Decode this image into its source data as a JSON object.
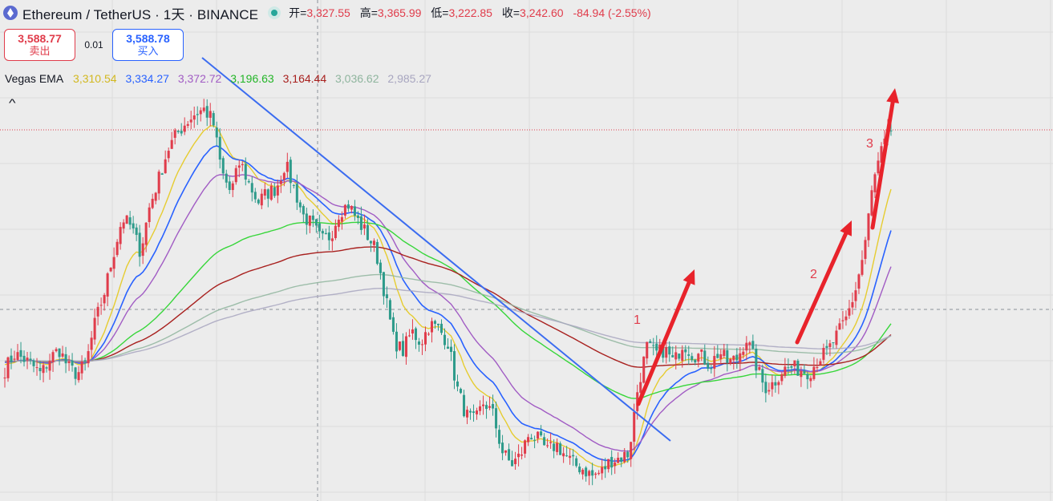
{
  "header": {
    "symbol": "Ethereum / TetherUS",
    "sep1": " · ",
    "interval": "1天",
    "sep2": " · ",
    "exchange": "BINANCE",
    "open_label": "开=",
    "open": "3,327.55",
    "high_label": "高=",
    "high": "3,365.99",
    "low_label": "低=",
    "low": "3,222.85",
    "close_label": "收=",
    "close": "3,242.60",
    "change": "-84.94 (-2.55%)"
  },
  "trade": {
    "sell_price": "3,588.77",
    "sell_label": "卖出",
    "spread": "0.01",
    "buy_price": "3,588.78",
    "buy_label": "买入"
  },
  "indicator": {
    "name": "Vegas EMA",
    "values": [
      "3,310.54",
      "3,334.27",
      "3,372.72",
      "3,196.63",
      "3,164.44",
      "3,036.62",
      "2,985.27"
    ]
  },
  "colors": {
    "up": "#e03c4b",
    "down": "#2e9b8b",
    "ema": [
      "#e6cc30",
      "#2962ff",
      "#a15cc4",
      "#37d63a",
      "#a8201e",
      "#8fb59e",
      "#a8a6c0"
    ],
    "trendline": "#3b6cf0",
    "arrow": "#e8232b"
  },
  "icons": {
    "logo": "ethereum-logo-icon",
    "status": "market-open-dot-icon",
    "collapse": "chevron-up-icon"
  },
  "annotations": [
    "1",
    "2",
    "3"
  ],
  "chart_data": {
    "type": "candlestick",
    "title": "Ethereum / TetherUS · 1天 · BINANCE",
    "ylim": [
      2200,
      4200
    ],
    "close_series": [
      2780,
      2850,
      2830,
      2800,
      2760,
      2830,
      2870,
      2790,
      2760,
      2810,
      2990,
      3120,
      3290,
      3450,
      3410,
      3300,
      3500,
      3620,
      3750,
      3820,
      3870,
      3910,
      3930,
      3880,
      3650,
      3560,
      3700,
      3600,
      3520,
      3560,
      3580,
      3690,
      3580,
      3460,
      3420,
      3350,
      3370,
      3480,
      3510,
      3440,
      3380,
      3310,
      3120,
      2910,
      2860,
      2950,
      2900,
      2980,
      2960,
      2900,
      2700,
      2580,
      2550,
      2640,
      2580,
      2420,
      2360,
      2400,
      2500,
      2470,
      2420,
      2450,
      2400,
      2360,
      2340,
      2310,
      2330,
      2380,
      2390,
      2410,
      2700,
      2880,
      2850,
      2870,
      2810,
      2900,
      2850,
      2840,
      2800,
      2860,
      2810,
      2830,
      2920,
      2810,
      2700,
      2720,
      2780,
      2790,
      2780,
      2770,
      2830,
      2860,
      2930,
      3000,
      3120,
      3300,
      3600,
      3750,
      3840
    ],
    "ema_series": [
      {
        "name": "EMA1",
        "last": "3,310.54"
      },
      {
        "name": "EMA2",
        "last": "3,334.27"
      },
      {
        "name": "EMA3",
        "last": "3,372.72"
      },
      {
        "name": "EMA4",
        "last": "3,196.63"
      },
      {
        "name": "EMA5",
        "last": "3,164.44"
      },
      {
        "name": "EMA6",
        "last": "3,036.62"
      },
      {
        "name": "EMA7",
        "last": "2,985.27"
      }
    ]
  }
}
